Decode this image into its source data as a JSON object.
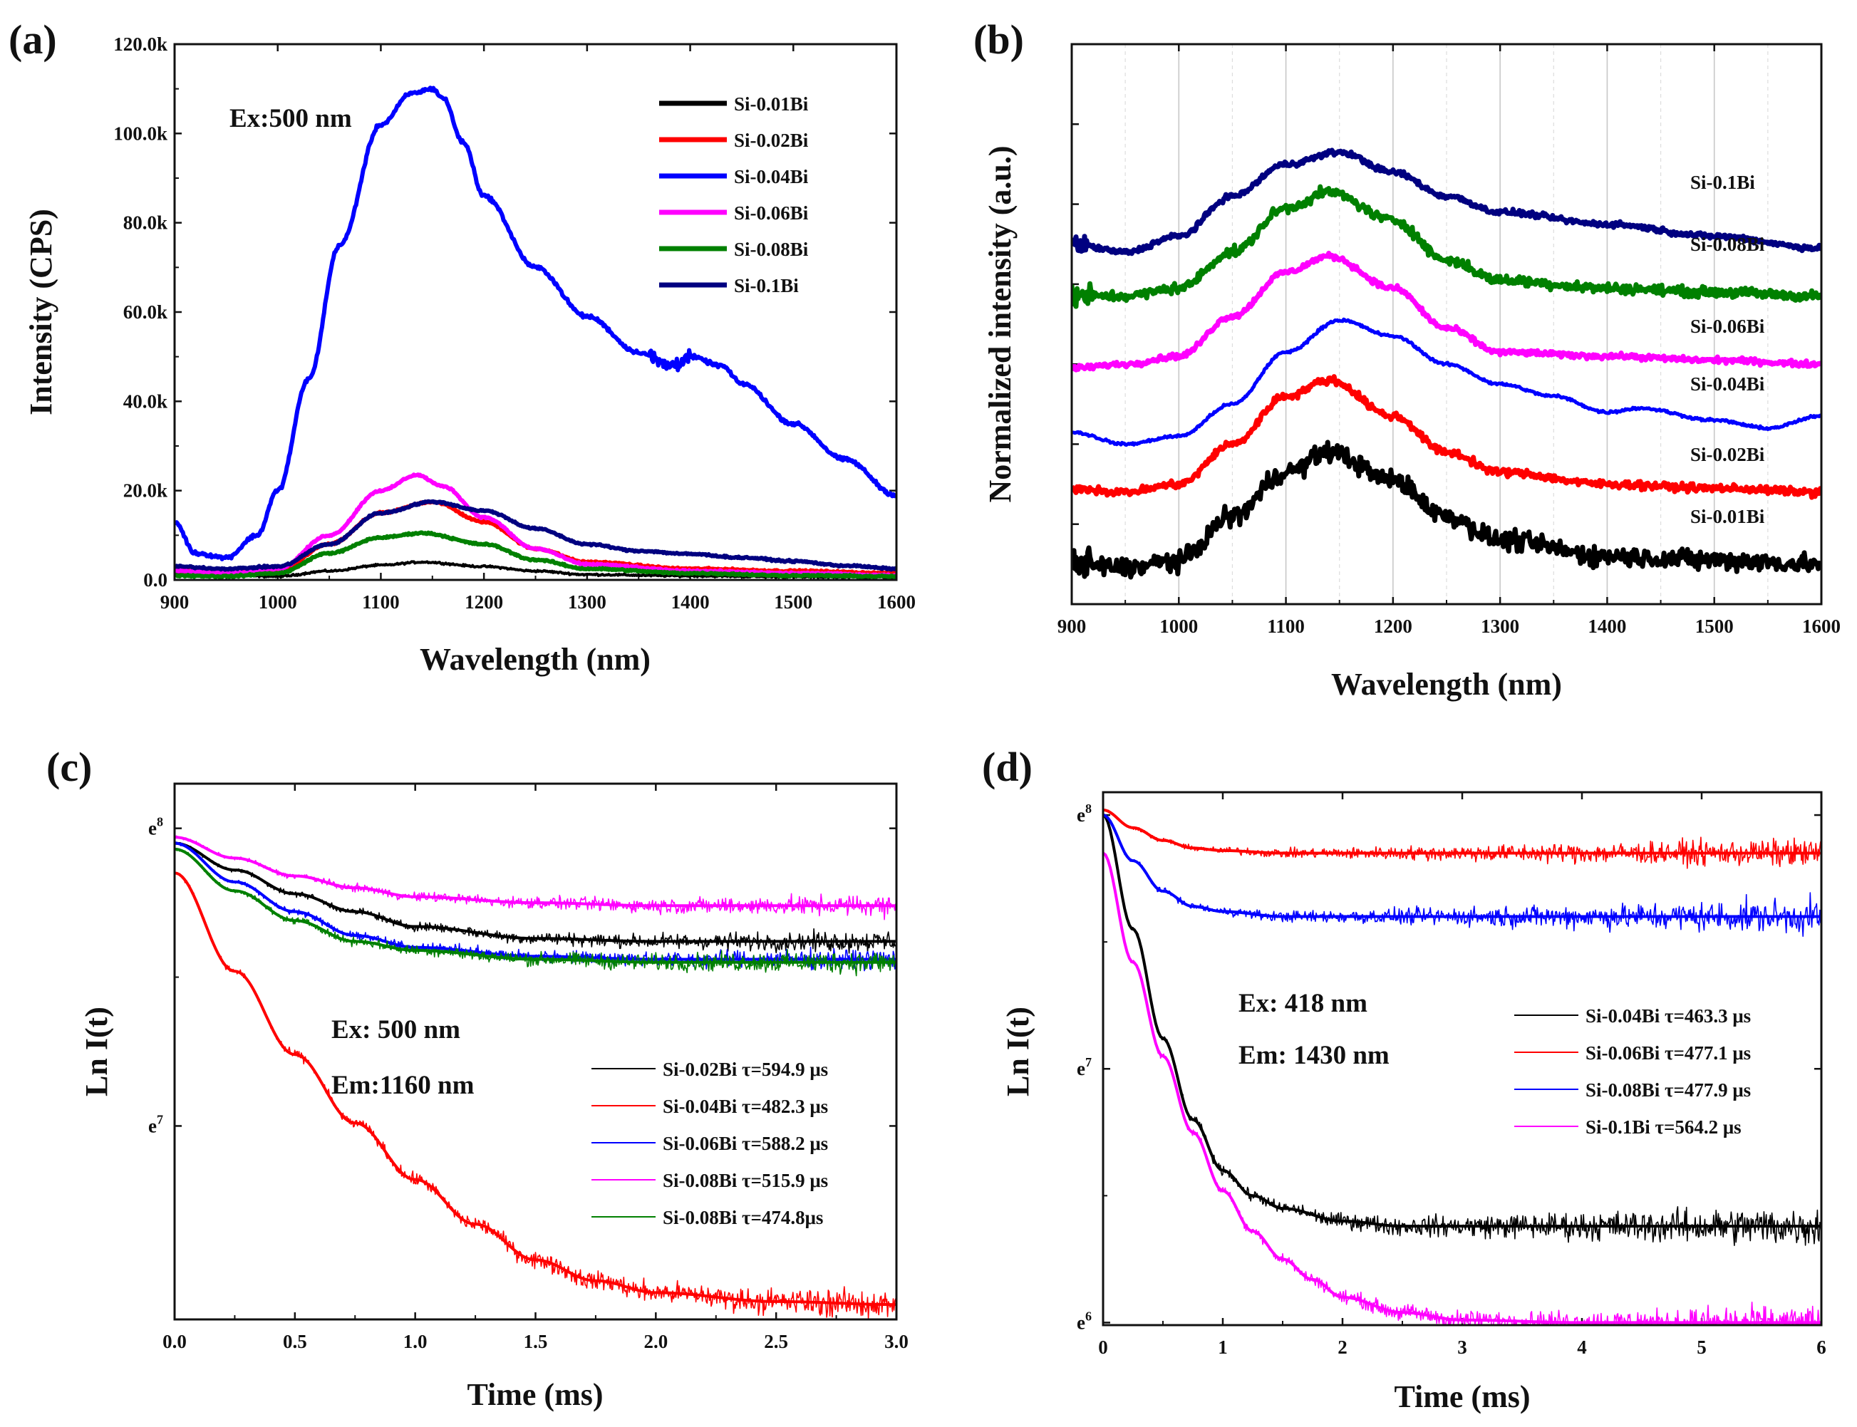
{
  "chart_data": [
    {
      "id": "a",
      "type": "line",
      "panel_label": "(a)",
      "xlabel": "Wavelength (nm)",
      "ylabel": "Intensity (CPS)",
      "xlim": [
        900,
        1600
      ],
      "ylim": [
        0,
        120000
      ],
      "x_ticks": [
        900,
        1000,
        1100,
        1200,
        1300,
        1400,
        1500,
        1600
      ],
      "x_tick_labels": [
        "900",
        "1000",
        "1100",
        "1200",
        "1300",
        "1400",
        "1500",
        "1600"
      ],
      "y_ticks": [
        0,
        20000,
        40000,
        60000,
        80000,
        100000,
        120000
      ],
      "y_tick_labels": [
        "0.0",
        "20.0k",
        "40.0k",
        "60.0k",
        "80.0k",
        "100.0k",
        "120.0k"
      ],
      "grid": false,
      "legend_position": "top-right",
      "annotations": [
        "Ex:500 nm"
      ],
      "series": [
        {
          "name": "Si-0.01Bi",
          "color": "#000000",
          "x": [
            900,
            950,
            1000,
            1050,
            1100,
            1140,
            1200,
            1250,
            1300,
            1400,
            1500,
            1600
          ],
          "values": [
            1500,
            1000,
            800,
            2000,
            3300,
            4000,
            3000,
            2000,
            1200,
            900,
            700,
            600
          ]
        },
        {
          "name": "Si-0.02Bi",
          "color": "#ff0000",
          "x": [
            900,
            950,
            1000,
            1050,
            1100,
            1150,
            1200,
            1250,
            1300,
            1400,
            1500,
            1600
          ],
          "values": [
            2000,
            1500,
            2000,
            8000,
            15000,
            17500,
            13000,
            7000,
            4000,
            2500,
            2000,
            1500
          ]
        },
        {
          "name": "Si-0.04Bi",
          "color": "#0000ff",
          "x": [
            900,
            920,
            950,
            980,
            1000,
            1030,
            1060,
            1100,
            1130,
            1150,
            1160,
            1180,
            1200,
            1250,
            1300,
            1350,
            1380,
            1400,
            1430,
            1450,
            1500,
            1550,
            1600
          ],
          "values": [
            13000,
            6000,
            5000,
            10000,
            20000,
            45000,
            75000,
            102000,
            109000,
            110000,
            108000,
            98000,
            86000,
            70000,
            59000,
            51000,
            48000,
            50000,
            48000,
            44000,
            35000,
            27000,
            19000
          ]
        },
        {
          "name": "Si-0.06Bi",
          "color": "#ff00ff",
          "x": [
            900,
            950,
            1000,
            1050,
            1100,
            1135,
            1160,
            1200,
            1250,
            1300,
            1400,
            1500,
            1600
          ],
          "values": [
            2000,
            1500,
            2500,
            10000,
            20000,
            23500,
            21000,
            14000,
            7000,
            3500,
            2000,
            1500,
            1000
          ]
        },
        {
          "name": "Si-0.08Bi",
          "color": "#008000",
          "x": [
            900,
            950,
            1000,
            1050,
            1100,
            1140,
            1200,
            1250,
            1300,
            1400,
            1500,
            1600
          ],
          "values": [
            1000,
            800,
            1500,
            6000,
            9500,
            10500,
            8000,
            4500,
            2500,
            1500,
            1000,
            800
          ]
        },
        {
          "name": "Si-0.1Bi",
          "color": "#000080",
          "x": [
            900,
            950,
            1000,
            1050,
            1100,
            1150,
            1200,
            1250,
            1300,
            1350,
            1400,
            1450,
            1500,
            1550,
            1600
          ],
          "values": [
            3000,
            2500,
            3000,
            8000,
            15000,
            17500,
            15500,
            11500,
            8000,
            6500,
            5800,
            5000,
            4200,
            3200,
            2500
          ]
        }
      ]
    },
    {
      "id": "b",
      "type": "line",
      "panel_label": "(b)",
      "xlabel": "Wavelength (nm)",
      "ylabel": "Normalized intensity (a.u.)",
      "xlim": [
        900,
        1600
      ],
      "ylim": [
        0,
        7
      ],
      "x_ticks": [
        900,
        1000,
        1100,
        1200,
        1300,
        1400,
        1500,
        1600
      ],
      "x_tick_labels": [
        "900",
        "1000",
        "1100",
        "1200",
        "1300",
        "1400",
        "1500",
        "1600"
      ],
      "grid": true,
      "legend_position": "right, inline labels",
      "series": [
        {
          "name": "Si-0.1Bi",
          "color": "#000080",
          "x": [
            900,
            950,
            1000,
            1050,
            1100,
            1150,
            1200,
            1250,
            1300,
            1400,
            1500,
            1600
          ],
          "values": [
            4.5,
            4.4,
            4.6,
            5.1,
            5.5,
            5.65,
            5.4,
            5.1,
            4.9,
            4.75,
            4.6,
            4.45
          ]
        },
        {
          "name": "Si-0.08Bi",
          "color": "#008000",
          "x": [
            900,
            950,
            1000,
            1050,
            1100,
            1140,
            1200,
            1250,
            1300,
            1400,
            1500,
            1600
          ],
          "values": [
            3.85,
            3.85,
            3.95,
            4.4,
            4.95,
            5.15,
            4.8,
            4.3,
            4.05,
            3.95,
            3.9,
            3.85
          ]
        },
        {
          "name": "Si-0.06Bi",
          "color": "#ff00ff",
          "x": [
            900,
            950,
            1000,
            1050,
            1100,
            1140,
            1200,
            1250,
            1300,
            1400,
            1500,
            1600
          ],
          "values": [
            2.95,
            3.0,
            3.1,
            3.6,
            4.15,
            4.35,
            3.95,
            3.45,
            3.15,
            3.1,
            3.05,
            3.0
          ]
        },
        {
          "name": "Si-0.04Bi",
          "color": "#0000ff",
          "x": [
            900,
            950,
            1000,
            1050,
            1100,
            1150,
            1200,
            1250,
            1300,
            1350,
            1400,
            1430,
            1500,
            1550,
            1600
          ],
          "values": [
            2.15,
            2.0,
            2.1,
            2.5,
            3.15,
            3.55,
            3.35,
            3.0,
            2.75,
            2.6,
            2.4,
            2.45,
            2.3,
            2.2,
            2.35
          ]
        },
        {
          "name": "Si-0.02Bi",
          "color": "#ff0000",
          "x": [
            900,
            950,
            1000,
            1050,
            1100,
            1140,
            1200,
            1250,
            1300,
            1400,
            1500,
            1600
          ],
          "values": [
            1.45,
            1.4,
            1.5,
            2.0,
            2.6,
            2.8,
            2.35,
            1.9,
            1.65,
            1.5,
            1.45,
            1.4
          ]
        },
        {
          "name": "Si-0.01Bi",
          "color": "#000000",
          "x": [
            900,
            950,
            1000,
            1050,
            1100,
            1140,
            1200,
            1250,
            1300,
            1400,
            1500,
            1600
          ],
          "values": [
            0.5,
            0.45,
            0.55,
            1.1,
            1.65,
            1.9,
            1.55,
            1.1,
            0.8,
            0.6,
            0.55,
            0.5
          ]
        }
      ]
    },
    {
      "id": "c",
      "type": "line",
      "panel_label": "(c)",
      "xlabel": "Time (ms)",
      "ylabel": "Ln I(t)",
      "xlim": [
        0,
        3
      ],
      "ylim": [
        6.35,
        8.15
      ],
      "x_ticks": [
        0,
        0.5,
        1,
        1.5,
        2,
        2.5,
        3
      ],
      "x_tick_labels": [
        "0.0",
        "0.5",
        "1.0",
        "1.5",
        "2.0",
        "2.5",
        "3.0"
      ],
      "y_ticks": [
        7,
        8
      ],
      "y_tick_labels": [
        "e",
        "e"
      ],
      "y_tick_sup": [
        "7",
        "8"
      ],
      "grid": false,
      "legend_position": "lower-right",
      "annotations": [
        "Ex: 500 nm",
        "Em:1160 nm"
      ],
      "series": [
        {
          "name": "Si-0.02Bi τ=594.9 μs",
          "color": "#000000",
          "x": [
            0,
            0.25,
            0.5,
            0.75,
            1,
            1.5,
            2,
            2.5,
            3
          ],
          "values": [
            7.95,
            7.86,
            7.78,
            7.72,
            7.67,
            7.63,
            7.62,
            7.62,
            7.62
          ]
        },
        {
          "name": "Si-0.04Bi τ=482.3 μs",
          "color": "#ff0000",
          "x": [
            0,
            0.25,
            0.5,
            0.75,
            1,
            1.25,
            1.5,
            1.75,
            2,
            2.5,
            3
          ],
          "values": [
            7.85,
            7.52,
            7.24,
            7.01,
            6.82,
            6.67,
            6.55,
            6.48,
            6.44,
            6.41,
            6.4
          ]
        },
        {
          "name": "Si-0.06Bi τ=588.2 μs",
          "color": "#0000ff",
          "x": [
            0,
            0.25,
            0.5,
            0.75,
            1,
            1.5,
            2,
            2.5,
            3
          ],
          "values": [
            7.95,
            7.82,
            7.72,
            7.64,
            7.6,
            7.57,
            7.56,
            7.56,
            7.56
          ]
        },
        {
          "name": "Si-0.08Bi τ=515.9 μs",
          "color": "#ff00ff",
          "x": [
            0,
            0.25,
            0.5,
            0.75,
            1,
            1.5,
            2,
            2.5,
            3
          ],
          "values": [
            7.97,
            7.9,
            7.84,
            7.8,
            7.77,
            7.75,
            7.74,
            7.74,
            7.74
          ]
        },
        {
          "name": "Si-0.08Bi τ=474.8μs",
          "color": "#008000",
          "x": [
            0,
            0.25,
            0.5,
            0.75,
            1,
            1.5,
            2,
            2.5,
            3
          ],
          "values": [
            7.93,
            7.79,
            7.69,
            7.62,
            7.59,
            7.56,
            7.55,
            7.55,
            7.55
          ]
        }
      ]
    },
    {
      "id": "d",
      "type": "line",
      "panel_label": "(d)",
      "xlabel": "Time (ms)",
      "ylabel": "Ln I(t)",
      "xlim": [
        0,
        6
      ],
      "ylim": [
        5.99,
        8.09
      ],
      "x_ticks": [
        0,
        1,
        2,
        3,
        4,
        5,
        6
      ],
      "x_tick_labels": [
        "0",
        "1",
        "2",
        "3",
        "4",
        "5",
        "6"
      ],
      "y_ticks": [
        6,
        7,
        8
      ],
      "y_tick_labels": [
        "e",
        "e",
        "e"
      ],
      "y_tick_sup": [
        "6",
        "7",
        "8"
      ],
      "grid": false,
      "legend_position": "center-right",
      "annotations": [
        "Ex: 418 nm",
        "Em: 1430 nm"
      ],
      "series": [
        {
          "name": "Si-0.04Bi τ=463.3 μs",
          "color": "#000000",
          "x": [
            0,
            0.25,
            0.5,
            0.75,
            1,
            1.25,
            1.5,
            2,
            2.5,
            3,
            4,
            5,
            6
          ],
          "values": [
            8.0,
            7.55,
            7.12,
            6.8,
            6.6,
            6.5,
            6.45,
            6.4,
            6.38,
            6.38,
            6.38,
            6.38,
            6.38
          ]
        },
        {
          "name": "Si-0.06Bi τ=477.1 μs",
          "color": "#ff0000",
          "x": [
            0,
            0.25,
            0.5,
            0.75,
            1,
            1.5,
            2,
            3,
            4,
            5,
            6
          ],
          "values": [
            8.02,
            7.95,
            7.9,
            7.87,
            7.86,
            7.85,
            7.85,
            7.85,
            7.85,
            7.85,
            7.85
          ]
        },
        {
          "name": "Si-0.08Bi τ=477.9 μs",
          "color": "#0000ff",
          "x": [
            0,
            0.25,
            0.5,
            0.75,
            1,
            1.5,
            2,
            3,
            4,
            5,
            6
          ],
          "values": [
            8.0,
            7.82,
            7.7,
            7.64,
            7.62,
            7.6,
            7.6,
            7.6,
            7.6,
            7.6,
            7.6
          ]
        },
        {
          "name": "Si-0.1Bi   τ=564.2 μs",
          "color": "#ff00ff",
          "x": [
            0,
            0.25,
            0.5,
            0.75,
            1,
            1.25,
            1.5,
            1.75,
            2,
            2.5,
            3,
            4,
            5,
            6
          ],
          "values": [
            7.85,
            7.42,
            7.05,
            6.75,
            6.52,
            6.36,
            6.25,
            6.17,
            6.1,
            6.04,
            6.01,
            6.0,
            6.0,
            6.0
          ]
        }
      ]
    }
  ]
}
